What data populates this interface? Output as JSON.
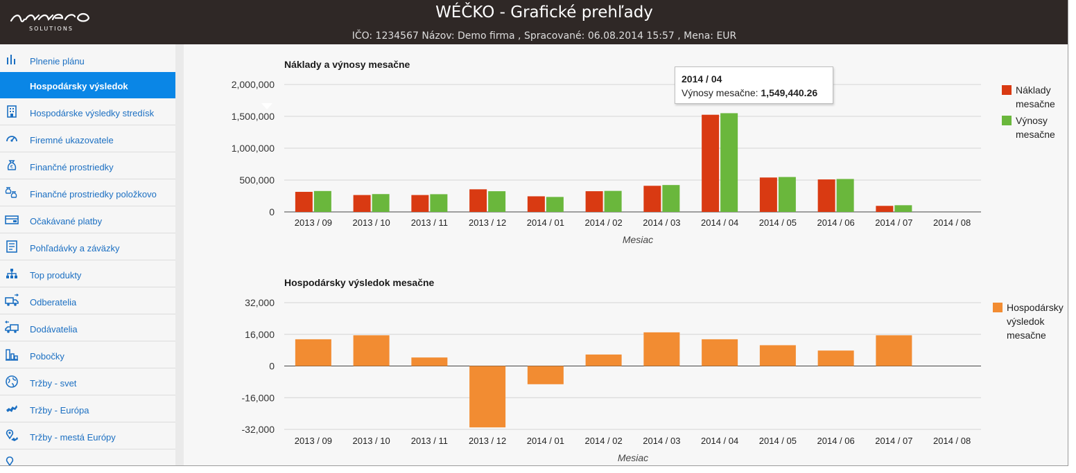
{
  "header": {
    "logo_text": "SOLUTIONS",
    "title": "WÉČKO - Grafické prehľady",
    "subtitle": "IČO: 1234567 Názov: Demo firma , Spracované: 06.08.2014 15:57 , Mena: EUR"
  },
  "sidebar": {
    "items": [
      {
        "label": "Plnenie plánu",
        "icon": "bar-chart-icon",
        "active": false
      },
      {
        "label": "Hospodársky výsledok",
        "icon": "",
        "active": true
      },
      {
        "label": "Hospodárske výsledky stredísk",
        "icon": "building-icon",
        "active": false
      },
      {
        "label": "Firemné ukazovatele",
        "icon": "gauge-icon",
        "active": false
      },
      {
        "label": "Finančné prostriedky",
        "icon": "money-bag-icon",
        "active": false
      },
      {
        "label": "Finančné prostriedky položkovo",
        "icon": "money-bags-icon",
        "active": false
      },
      {
        "label": "Očakávané platby",
        "icon": "payment-card-icon",
        "active": false
      },
      {
        "label": "Pohľadávky a záväzky",
        "icon": "document-list-icon",
        "active": false
      },
      {
        "label": "Top produkty",
        "icon": "hierarchy-icon",
        "active": false
      },
      {
        "label": "Odberatelia",
        "icon": "truck-out-icon",
        "active": false
      },
      {
        "label": "Dodávatelia",
        "icon": "truck-in-icon",
        "active": false
      },
      {
        "label": "Pobočky",
        "icon": "branches-icon",
        "active": false
      },
      {
        "label": "Tržby - svet",
        "icon": "globe-icon",
        "active": false
      },
      {
        "label": "Tržby - Európa",
        "icon": "europe-icon",
        "active": false
      },
      {
        "label": "Tržby - mestá Európy",
        "icon": "map-pin-icon",
        "active": false
      }
    ]
  },
  "colors": {
    "header_bg": "#2f2826",
    "active_item": "#0a86e6",
    "nav_text": "#1b6fc2",
    "costs": "#d93a12",
    "revenue": "#6ab73c",
    "result": "#f28c32"
  },
  "tooltip": {
    "title": "2014 / 04",
    "label": "Výnosy mesačne:",
    "value": "1,549,440.26"
  },
  "chart_data": [
    {
      "type": "bar",
      "title": "Náklady a výnosy mesačne",
      "xlabel": "Mesiac",
      "ylabel": "",
      "categories": [
        "2013 / 09",
        "2013 / 10",
        "2013 / 11",
        "2013 / 12",
        "2014 / 01",
        "2014 / 02",
        "2014 / 03",
        "2014 / 04",
        "2014 / 05",
        "2014 / 06",
        "2014 / 07",
        "2014 / 08"
      ],
      "series": [
        {
          "name": "Náklady mesačne",
          "values": [
            315000,
            265000,
            265000,
            355000,
            245000,
            325000,
            410000,
            1525000,
            540000,
            510000,
            95000,
            0
          ]
        },
        {
          "name": "Výnosy mesačne",
          "values": [
            328000,
            280000,
            278000,
            325000,
            235000,
            330000,
            422000,
            1549440.26,
            548000,
            517000,
            105000,
            0
          ]
        }
      ],
      "yticks": [
        "2,000,000",
        "1,500,000",
        "1,000,000",
        "500,000",
        "0"
      ],
      "ylim": [
        0,
        2000000
      ],
      "grid": true,
      "legend": "right"
    },
    {
      "type": "bar",
      "title": "Hospodársky výsledok mesačne",
      "xlabel": "Mesiac",
      "ylabel": "",
      "categories": [
        "2013 / 09",
        "2013 / 10",
        "2013 / 11",
        "2013 / 12",
        "2014 / 01",
        "2014 / 02",
        "2014 / 03",
        "2014 / 04",
        "2014 / 05",
        "2014 / 06",
        "2014 / 07",
        "2014 / 08"
      ],
      "series": [
        {
          "name": "Hospodársky výsledok mesačne",
          "values": [
            13500,
            15500,
            4300,
            -31000,
            -9200,
            5800,
            17000,
            13500,
            10500,
            7800,
            15500,
            0
          ]
        }
      ],
      "yticks": [
        "32,000",
        "16,000",
        "0",
        "-16,000",
        "-32,000"
      ],
      "ylim": [
        -32000,
        32000
      ],
      "grid": true,
      "legend": "right"
    }
  ]
}
